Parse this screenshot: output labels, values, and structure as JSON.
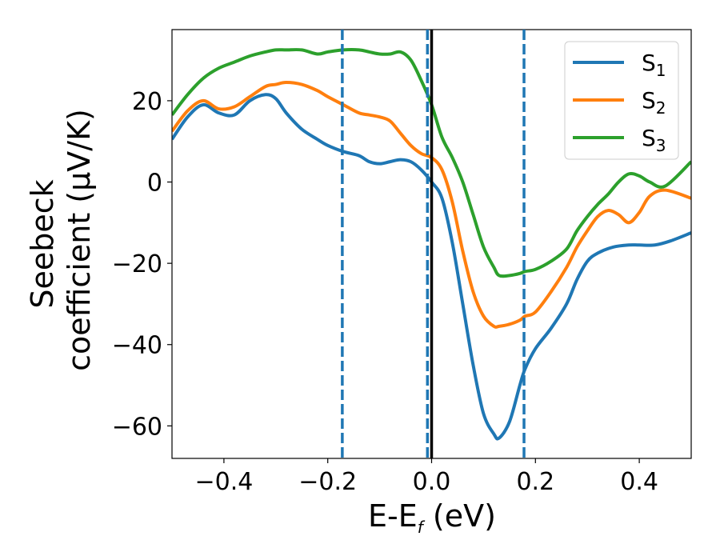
{
  "chart_data": {
    "type": "line",
    "xlabel": {
      "main": "E-E",
      "sub": "f",
      "rest": " (eV)"
    },
    "ylabel": {
      "line1": "Seebeck",
      "line2": "coefficient  (μV/K)"
    },
    "xlim": [
      -0.5,
      0.5
    ],
    "ylim": [
      -68,
      37.5
    ],
    "xticks": [
      -0.4,
      -0.2,
      0.0,
      0.2,
      0.4
    ],
    "xtick_labels": [
      "−0.4",
      "−0.2",
      "0.0",
      "0.2",
      "0.4"
    ],
    "yticks": [
      -60,
      -40,
      -20,
      0,
      20
    ],
    "ytick_labels": [
      "−60",
      "−40",
      "−20",
      "0",
      "20"
    ],
    "grid": false,
    "legend_position": "top-right",
    "vlines": [
      {
        "x": -0.172,
        "style": "dashed",
        "color": "#1f77b4"
      },
      {
        "x": -0.008,
        "style": "dashed",
        "color": "#1f77b4"
      },
      {
        "x": 0.0,
        "style": "solid",
        "color": "#000000"
      },
      {
        "x": 0.178,
        "style": "dashed",
        "color": "#1f77b4"
      }
    ],
    "series": [
      {
        "name": "S",
        "sub": "1",
        "color": "#1f77b4",
        "x": [
          -0.5,
          -0.47,
          -0.44,
          -0.41,
          -0.38,
          -0.35,
          -0.32,
          -0.3,
          -0.28,
          -0.25,
          -0.22,
          -0.2,
          -0.17,
          -0.14,
          -0.12,
          -0.1,
          -0.08,
          -0.06,
          -0.04,
          -0.02,
          0.0,
          0.02,
          0.04,
          0.06,
          0.08,
          0.1,
          0.12,
          0.13,
          0.15,
          0.17,
          0.18,
          0.2,
          0.23,
          0.26,
          0.28,
          0.3,
          0.32,
          0.35,
          0.38,
          0.4,
          0.43,
          0.46,
          0.5
        ],
        "y": [
          10.5,
          16,
          19,
          17,
          16.5,
          20,
          21.5,
          20.5,
          17,
          13,
          10.5,
          9,
          7.5,
          6.5,
          5,
          4.5,
          5,
          5.5,
          5,
          3,
          0,
          -4,
          -15,
          -30,
          -45,
          -57,
          -62,
          -63,
          -59,
          -50,
          -46,
          -41,
          -36,
          -30,
          -24,
          -19.5,
          -17.5,
          -16,
          -15.5,
          -15.5,
          -15.5,
          -14.5,
          -12.5
        ]
      },
      {
        "name": "S",
        "sub": "2",
        "color": "#ff7f0e",
        "x": [
          -0.5,
          -0.47,
          -0.44,
          -0.41,
          -0.38,
          -0.35,
          -0.32,
          -0.3,
          -0.28,
          -0.25,
          -0.22,
          -0.2,
          -0.17,
          -0.14,
          -0.12,
          -0.1,
          -0.08,
          -0.06,
          -0.04,
          -0.02,
          0.0,
          0.02,
          0.04,
          0.06,
          0.08,
          0.1,
          0.12,
          0.13,
          0.15,
          0.17,
          0.18,
          0.2,
          0.23,
          0.26,
          0.28,
          0.3,
          0.32,
          0.34,
          0.36,
          0.38,
          0.4,
          0.42,
          0.45,
          0.5
        ],
        "y": [
          12.5,
          17.5,
          20,
          18,
          18.5,
          21,
          23.5,
          24,
          24.5,
          24,
          22.5,
          21,
          19,
          17,
          16.5,
          16,
          15,
          12,
          9,
          7,
          6,
          3,
          -5,
          -17,
          -27,
          -33,
          -35.5,
          -35.5,
          -35,
          -34,
          -33,
          -32,
          -27,
          -21,
          -16,
          -12,
          -8.5,
          -7,
          -8,
          -10,
          -7.5,
          -3.5,
          -2,
          -4
        ]
      },
      {
        "name": "S",
        "sub": "3",
        "color": "#2ca02c",
        "x": [
          -0.5,
          -0.47,
          -0.44,
          -0.41,
          -0.38,
          -0.35,
          -0.32,
          -0.3,
          -0.28,
          -0.25,
          -0.22,
          -0.2,
          -0.17,
          -0.14,
          -0.12,
          -0.1,
          -0.08,
          -0.06,
          -0.04,
          -0.02,
          0.0,
          0.02,
          0.04,
          0.06,
          0.08,
          0.1,
          0.12,
          0.13,
          0.15,
          0.17,
          0.18,
          0.2,
          0.23,
          0.26,
          0.28,
          0.3,
          0.32,
          0.34,
          0.36,
          0.38,
          0.4,
          0.42,
          0.45,
          0.5
        ],
        "y": [
          16.5,
          21.5,
          25.5,
          28,
          29.5,
          31,
          32,
          32.5,
          32.5,
          32.5,
          31.5,
          32,
          32.5,
          32.5,
          32,
          31.5,
          31.5,
          32,
          30,
          25,
          19,
          11,
          6,
          0,
          -8,
          -16,
          -21,
          -23,
          -23,
          -22.5,
          -22,
          -21.5,
          -19.5,
          -16.5,
          -12,
          -8.5,
          -5.5,
          -3,
          0,
          2,
          1.5,
          0,
          -1,
          5
        ]
      }
    ]
  }
}
